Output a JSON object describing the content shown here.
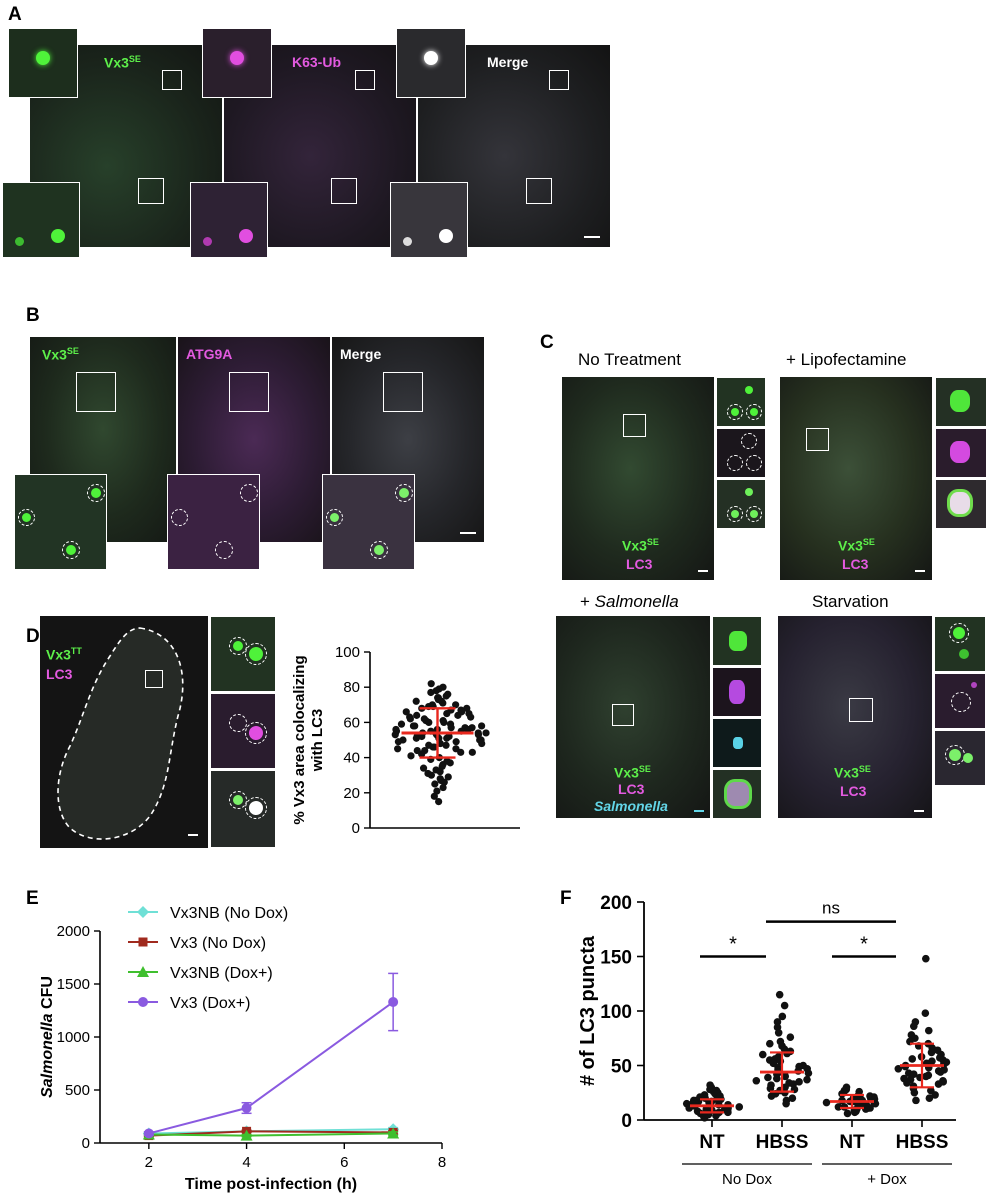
{
  "panels": {
    "A": {
      "label": "A",
      "channels": [
        {
          "name": "Vx3",
          "sup": "SE"
        },
        {
          "name": "K63-Ub",
          "sup": ""
        },
        {
          "name": "Merge",
          "sup": ""
        }
      ]
    },
    "B": {
      "label": "B",
      "channels": [
        {
          "name": "Vx3",
          "sup": "SE"
        },
        {
          "name": "ATG9A",
          "sup": ""
        },
        {
          "name": "Merge",
          "sup": ""
        }
      ]
    },
    "C": {
      "label": "C",
      "conditions": [
        {
          "title": "No Treatment",
          "title_prefix": "",
          "title_italic": "",
          "stain1": "Vx3",
          "stain1_sup": "SE",
          "stain2": "LC3",
          "stain3": ""
        },
        {
          "title": "+ Lipofectamine",
          "title_prefix": "",
          "title_italic": "",
          "stain1": "Vx3",
          "stain1_sup": "SE",
          "stain2": "LC3",
          "stain3": ""
        },
        {
          "title": "",
          "title_prefix": "+ ",
          "title_italic": "Salmonella",
          "stain1": "Vx3",
          "stain1_sup": "SE",
          "stain2": "LC3",
          "stain3": "Salmonella"
        },
        {
          "title": "Starvation",
          "title_prefix": "",
          "title_italic": "",
          "stain1": "Vx3",
          "stain1_sup": "SE",
          "stain2": "LC3",
          "stain3": ""
        }
      ]
    },
    "D": {
      "label": "D",
      "stain1": "Vx3",
      "stain1_sup": "TT",
      "stain2": "LC3",
      "chart_data": {
        "type": "scatter",
        "ylabel_line1": "% Vx3 area colocalizing",
        "ylabel_line2": "with LC3",
        "ylim": [
          0,
          100
        ],
        "yticks": [
          0,
          20,
          40,
          60,
          80,
          100
        ],
        "mean": 54,
        "sd": 14,
        "values": [
          82,
          80,
          79,
          78,
          77,
          76,
          75,
          74,
          74,
          73,
          72,
          72,
          71,
          70,
          70,
          69,
          69,
          68,
          68,
          67,
          67,
          66,
          66,
          65,
          65,
          64,
          64,
          63,
          63,
          62,
          62,
          61,
          61,
          60,
          60,
          59,
          59,
          58,
          58,
          58,
          57,
          57,
          57,
          56,
          56,
          56,
          55,
          55,
          55,
          54,
          54,
          54,
          54,
          53,
          53,
          53,
          52,
          52,
          52,
          51,
          51,
          51,
          50,
          50,
          50,
          49,
          49,
          48,
          48,
          47,
          47,
          46,
          46,
          45,
          45,
          44,
          44,
          43,
          43,
          42,
          41,
          40,
          39,
          38,
          37,
          36,
          35,
          34,
          33,
          32,
          31,
          30,
          29,
          28,
          27,
          26,
          25,
          23,
          21,
          18,
          15
        ]
      }
    },
    "E": {
      "label": "E",
      "chart_data": {
        "type": "line",
        "ylabel_italic": "Salmonella",
        "ylabel_rest": " CFU",
        "xlabel": "Time post-infection (h)",
        "xlim": [
          1,
          8
        ],
        "ylim": [
          0,
          2000
        ],
        "xticks": [
          2,
          4,
          6,
          8
        ],
        "yticks": [
          0,
          500,
          1000,
          1500,
          2000
        ],
        "x": [
          2,
          4,
          7
        ],
        "series": [
          {
            "name": "Vx3NB (No Dox)",
            "color": "#6fe0d6",
            "marker": "diamond",
            "values": [
              90,
              110,
              130
            ],
            "err": [
              10,
              10,
              15
            ]
          },
          {
            "name": "Vx3 (No Dox)",
            "color": "#a02a1e",
            "marker": "square",
            "values": [
              70,
              110,
              100
            ],
            "err": [
              10,
              10,
              15
            ]
          },
          {
            "name": "Vx3NB (Dox+)",
            "color": "#3fbf2e",
            "marker": "triangle",
            "values": [
              80,
              70,
              90
            ],
            "err": [
              10,
              10,
              15
            ]
          },
          {
            "name": "Vx3 (Dox+)",
            "color": "#8a5ae0",
            "marker": "circle",
            "values": [
              90,
              330,
              1330
            ],
            "err": [
              15,
              50,
              270
            ]
          }
        ]
      }
    },
    "F": {
      "label": "F",
      "chart_data": {
        "type": "scatter",
        "ylabel": "# of LC3 puncta",
        "ylim": [
          0,
          200
        ],
        "yticks": [
          0,
          50,
          100,
          150,
          200
        ],
        "categories": [
          "NT",
          "HBSS",
          "NT",
          "HBSS"
        ],
        "groups": [
          "No Dox",
          "+ Dox"
        ],
        "significance": [
          "*",
          "ns",
          "*"
        ],
        "series": [
          {
            "name": "NT",
            "mean": 13,
            "sd": 6,
            "values": [
              32,
              30,
              28,
              27,
              26,
              25,
              24,
              23,
              22,
              21,
              20,
              19,
              19,
              18,
              18,
              17,
              17,
              16,
              16,
              15,
              15,
              14,
              14,
              13,
              13,
              12,
              12,
              11,
              11,
              10,
              10,
              9,
              9,
              8,
              8,
              7,
              7,
              6,
              6,
              5,
              5,
              4,
              3,
              2
            ]
          },
          {
            "name": "HBSS",
            "mean": 44,
            "sd": 18,
            "values": [
              115,
              105,
              95,
              90,
              85,
              80,
              76,
              72,
              70,
              68,
              65,
              63,
              61,
              60,
              58,
              56,
              55,
              54,
              52,
              50,
              49,
              48,
              47,
              46,
              45,
              44,
              43,
              42,
              41,
              40,
              39,
              38,
              37,
              36,
              35,
              34,
              33,
              32,
              30,
              29,
              28,
              27,
              25,
              24,
              22,
              20,
              18,
              15
            ]
          },
          {
            "name": "NT",
            "mean": 17,
            "sd": 6,
            "values": [
              30,
              28,
              27,
              26,
              25,
              24,
              23,
              22,
              21,
              21,
              20,
              20,
              19,
              19,
              18,
              18,
              17,
              17,
              16,
              16,
              15,
              15,
              14,
              14,
              13,
              13,
              12,
              12,
              11,
              11,
              10,
              10,
              9,
              8,
              7,
              6
            ]
          },
          {
            "name": "HBSS",
            "mean": 50,
            "sd": 20,
            "values": [
              148,
              98,
              90,
              86,
              82,
              78,
              75,
              72,
              70,
              68,
              66,
              64,
              62,
              60,
              58,
              57,
              56,
              55,
              54,
              53,
              52,
              51,
              50,
              49,
              48,
              47,
              46,
              45,
              44,
              43,
              42,
              41,
              40,
              39,
              38,
              37,
              36,
              35,
              34,
              33,
              31,
              29,
              27,
              25,
              23,
              20,
              18
            ]
          }
        ]
      }
    }
  }
}
